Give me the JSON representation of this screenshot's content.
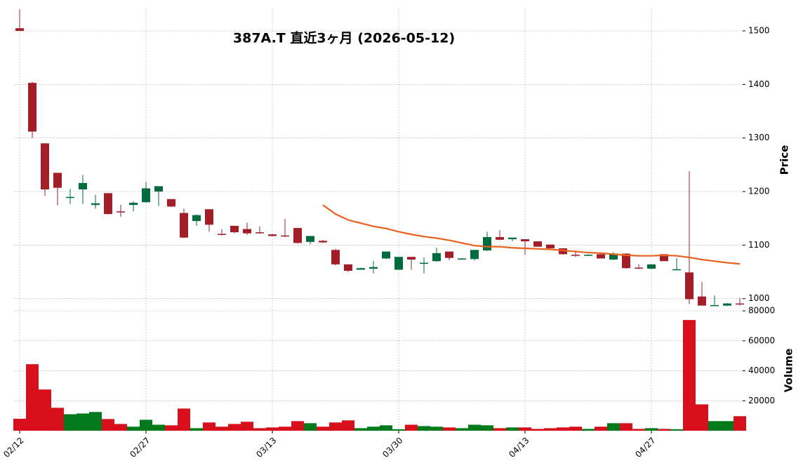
{
  "chart_data": [
    {
      "type": "candlestick",
      "title": "387A.T  直近3ヶ月  (2026-05-12)",
      "ylabel": "Price",
      "categories": [
        "02/12",
        null,
        null,
        null,
        null,
        null,
        null,
        null,
        null,
        null,
        "02/27",
        null,
        null,
        null,
        null,
        null,
        null,
        null,
        null,
        null,
        "03/13",
        null,
        null,
        null,
        null,
        null,
        null,
        null,
        null,
        null,
        "03/30",
        null,
        null,
        null,
        null,
        null,
        null,
        null,
        null,
        null,
        "04/13",
        null,
        null,
        null,
        null,
        null,
        null,
        null,
        null,
        null,
        "04/27",
        null,
        null,
        null,
        null,
        null,
        null,
        null
      ],
      "open": [
        1505,
        1403,
        1290,
        1235,
        1188,
        1204,
        1175,
        1197,
        1163,
        1175,
        1180,
        1200,
        1186,
        1160,
        1145,
        1167,
        1121,
        1136,
        1130,
        1124,
        1120,
        1118,
        1132,
        1106,
        1108,
        1091,
        1064,
        1054,
        1056,
        1075,
        1054,
        1078,
        1065,
        1070,
        1088,
        1073,
        1074,
        1090,
        1115,
        1111,
        1111,
        1107,
        1101,
        1094,
        1082,
        1080,
        1083,
        1073,
        1084,
        1058,
        1056,
        1083,
        1053,
        1049,
        1004,
        986,
        987,
        991
      ],
      "high": [
        1540,
        1405,
        1290,
        1235,
        1205,
        1231,
        1194,
        1197,
        1175,
        1182,
        1218,
        1210,
        1186,
        1168,
        1157,
        1167,
        1130,
        1136,
        1142,
        1135,
        1121,
        1149,
        1132,
        1117,
        1110,
        1093,
        1064,
        1058,
        1070,
        1088,
        1078,
        1078,
        1077,
        1095,
        1088,
        1076,
        1091,
        1125,
        1128,
        1114,
        1111,
        1107,
        1101,
        1094,
        1090,
        1083,
        1083,
        1087,
        1085,
        1064,
        1064,
        1083,
        1076,
        1238,
        1031,
        1006,
        992,
        1001
      ],
      "low": [
        1500,
        1300,
        1192,
        1174,
        1177,
        1177,
        1168,
        1157,
        1153,
        1163,
        1180,
        1173,
        1171,
        1113,
        1136,
        1125,
        1118,
        1122,
        1119,
        1121,
        1116,
        1115,
        1103,
        1101,
        1104,
        1062,
        1050,
        1054,
        1047,
        1074,
        1054,
        1054,
        1047,
        1069,
        1072,
        1073,
        1071,
        1089,
        1109,
        1107,
        1082,
        1097,
        1094,
        1082,
        1078,
        1080,
        1075,
        1072,
        1056,
        1055,
        1055,
        1070,
        1053,
        990,
        987,
        986,
        986,
        987
      ],
      "close": [
        1500,
        1312,
        1204,
        1207,
        1190,
        1216,
        1178,
        1158,
        1161,
        1179,
        1206,
        1210,
        1172,
        1114,
        1156,
        1138,
        1119,
        1124,
        1122,
        1122,
        1117,
        1116,
        1104,
        1117,
        1105,
        1064,
        1052,
        1057,
        1059,
        1088,
        1078,
        1073,
        1067,
        1085,
        1076,
        1075,
        1091,
        1115,
        1110,
        1114,
        1107,
        1097,
        1094,
        1083,
        1080,
        1082,
        1075,
        1084,
        1057,
        1056,
        1064,
        1070,
        1055,
        999,
        987,
        988,
        991,
        989
      ],
      "up_color": "#006b3c",
      "down_color": "#a21f2a",
      "series": [
        {
          "color": "#e8601c",
          "values": [
            null,
            null,
            null,
            null,
            null,
            null,
            null,
            null,
            null,
            null,
            null,
            null,
            null,
            null,
            null,
            null,
            null,
            null,
            null,
            null,
            null,
            null,
            null,
            null,
            1175,
            1158,
            1147,
            1141,
            1135,
            1131,
            1125,
            1120,
            1116,
            1113,
            1109,
            1104,
            1099,
            1097,
            1097,
            1095,
            1094,
            1093,
            1092,
            1090,
            1088,
            1086,
            1085,
            1083,
            1081,
            1080,
            1080,
            1081,
            1080,
            1077,
            1073,
            1070,
            1067,
            1065
          ]
        }
      ],
      "ylim": [
        980,
        1542
      ],
      "yticks": [
        1000,
        1100,
        1200,
        1300,
        1400,
        1500
      ],
      "grid": true
    },
    {
      "type": "bar",
      "ylabel": "Volume",
      "values": [
        8000,
        44400,
        27500,
        15300,
        11000,
        11500,
        12500,
        7800,
        4500,
        2700,
        7300,
        4000,
        3600,
        14800,
        1700,
        5500,
        2700,
        4500,
        6000,
        1700,
        2200,
        2700,
        6400,
        5000,
        2700,
        5500,
        6900,
        1700,
        2700,
        3600,
        1000,
        4000,
        3100,
        2700,
        2200,
        1700,
        4000,
        3600,
        1700,
        2200,
        2200,
        1200,
        1700,
        2200,
        2700,
        1200,
        2700,
        5000,
        5000,
        1200,
        1700,
        1200,
        1000,
        73900,
        17600,
        6400,
        6400,
        9700
      ],
      "up_color": "#007a1a",
      "down_color": "#d7101c",
      "ylim": [
        0,
        81000
      ],
      "yticks": [
        20000,
        40000,
        60000,
        80000
      ],
      "grid": true
    }
  ]
}
